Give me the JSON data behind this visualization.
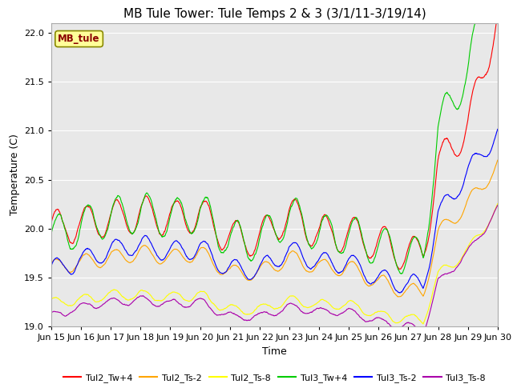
{
  "title": "MB Tule Tower: Tule Temps 2 & 3 (3/1/11-3/19/14)",
  "xlabel": "Time",
  "ylabel": "Temperature (C)",
  "ylim": [
    19.0,
    22.1
  ],
  "yticks": [
    19.0,
    19.5,
    20.0,
    20.5,
    21.0,
    21.5,
    22.0
  ],
  "xtick_labels": [
    "Jun 15",
    "Jun 16",
    "Jun 17",
    "Jun 18",
    "Jun 19",
    "Jun 20",
    "Jun 21",
    "Jun 22",
    "Jun 23",
    "Jun 24",
    "Jun 25",
    "Jun 26",
    "Jun 27",
    "Jun 28",
    "Jun 29",
    "Jun 30"
  ],
  "watermark": "MB_tule",
  "watermark_color": "#8B0000",
  "watermark_bg": "#FFFF99",
  "background_color": "#E8E8E8",
  "series": [
    {
      "label": "Tul2_Tw+4",
      "color": "#FF0000"
    },
    {
      "label": "Tul2_Ts-2",
      "color": "#FFA500"
    },
    {
      "label": "Tul2_Ts-8",
      "color": "#FFFF00"
    },
    {
      "label": "Tul3_Tw+4",
      "color": "#00CC00"
    },
    {
      "label": "Tul3_Ts-2",
      "color": "#0000FF"
    },
    {
      "label": "Tul3_Ts-8",
      "color": "#AA00AA"
    }
  ],
  "title_fontsize": 11,
  "axis_label_fontsize": 9,
  "tick_fontsize": 8,
  "legend_fontsize": 8
}
